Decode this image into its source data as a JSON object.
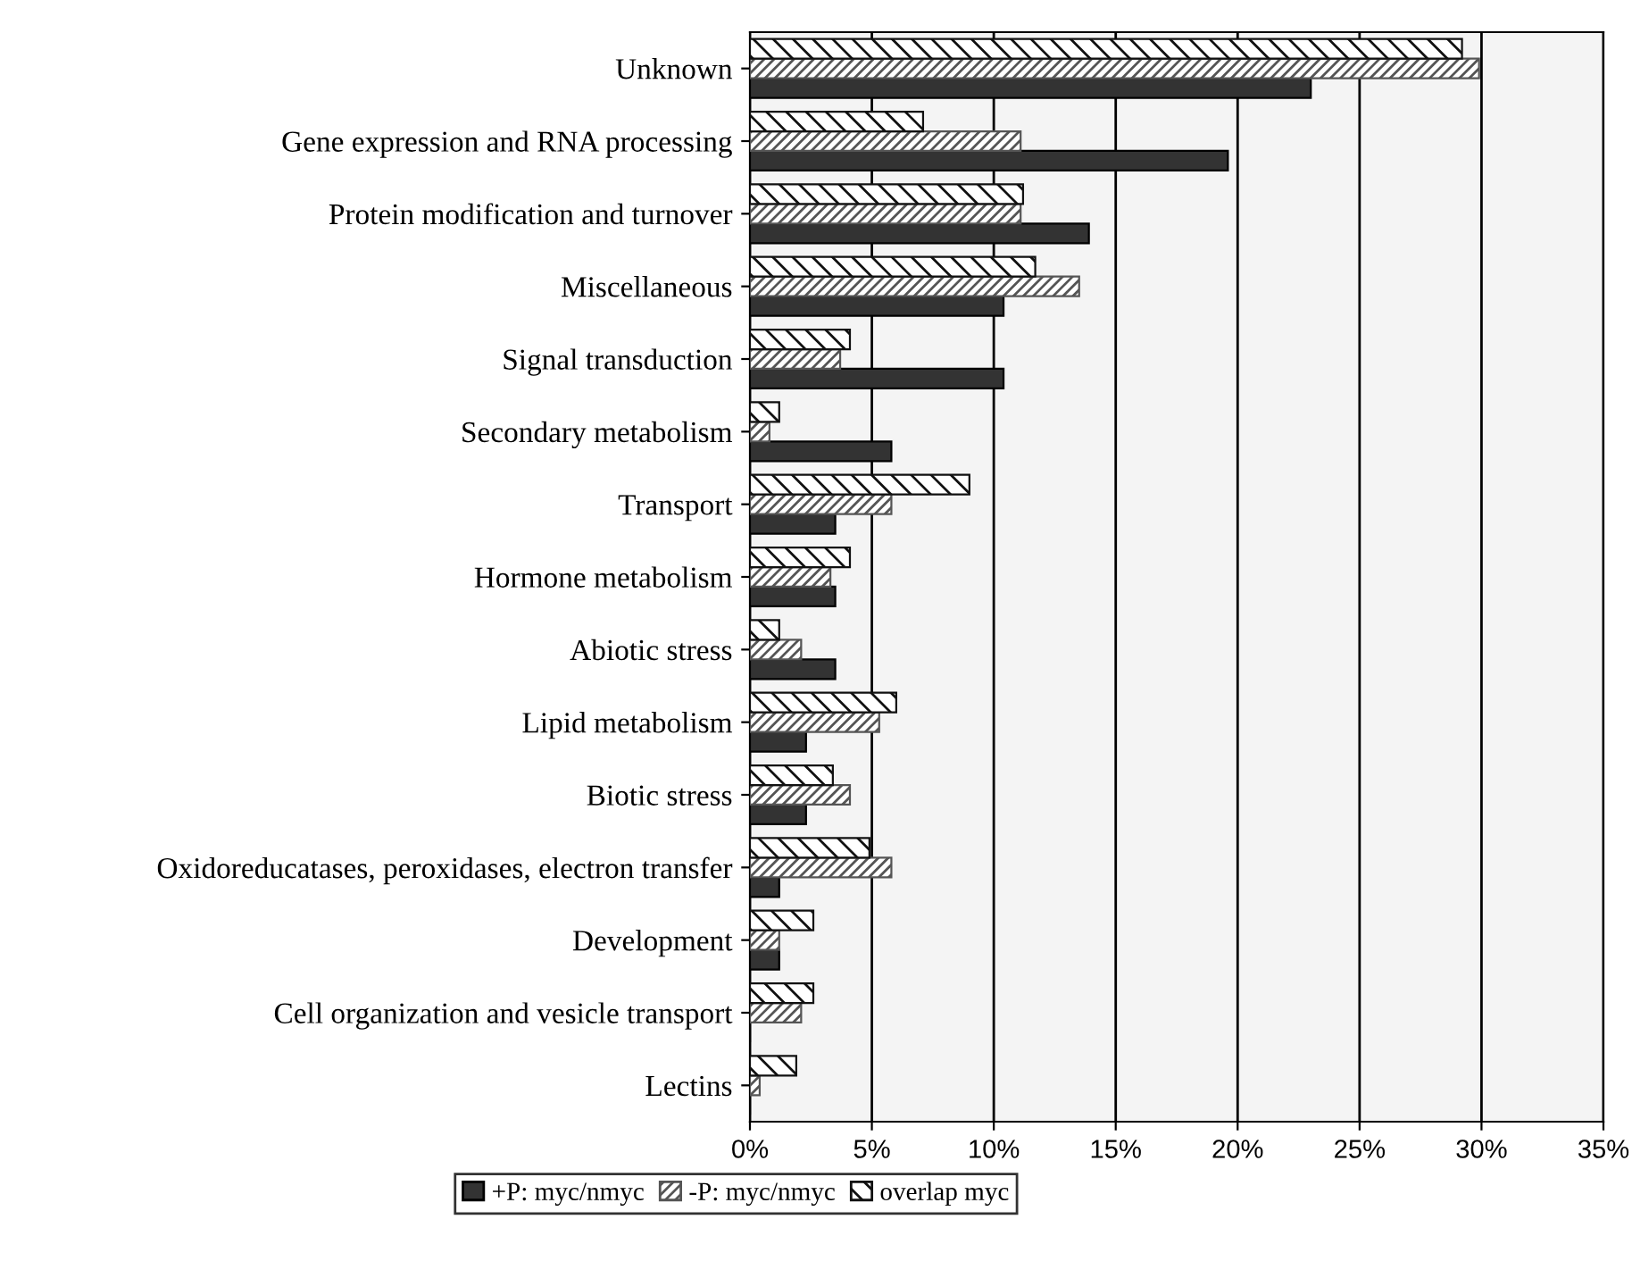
{
  "chart_data": {
    "type": "bar",
    "orientation": "horizontal",
    "categories": [
      "Unknown",
      "Gene expression and RNA processing",
      "Protein modification and turnover",
      "Miscellaneous",
      "Signal transduction",
      "Secondary metabolism",
      "Transport",
      "Hormone metabolism",
      "Abiotic stress",
      "Lipid metabolism",
      "Biotic stress",
      "Oxidoreducatases, peroxidases, electron transfer",
      "Development",
      "Cell organization and vesicle transport",
      "Lectins"
    ],
    "series": [
      {
        "name": "+P: myc/nmyc",
        "color": "#333333",
        "values": [
          23.0,
          19.6,
          13.9,
          10.4,
          10.4,
          5.8,
          3.5,
          3.5,
          3.5,
          2.3,
          2.3,
          1.2,
          1.2,
          0,
          0
        ]
      },
      {
        "name": "-P: myc/nmyc",
        "color": "#555555",
        "values": [
          29.9,
          11.1,
          11.1,
          13.5,
          3.7,
          0.8,
          5.8,
          3.3,
          2.1,
          5.3,
          4.1,
          5.8,
          1.2,
          2.1,
          0.4
        ]
      },
      {
        "name": "overlap myc",
        "color": "#111111",
        "values": [
          29.2,
          7.1,
          11.2,
          11.7,
          4.1,
          1.2,
          9.0,
          4.1,
          1.2,
          6.0,
          3.4,
          4.9,
          2.6,
          2.6,
          1.9
        ]
      }
    ],
    "xlim": [
      0,
      35
    ],
    "xticks": [
      {
        "value": 0,
        "label": "0%"
      },
      {
        "value": 5,
        "label": "5%"
      },
      {
        "value": 10,
        "label": "10%"
      },
      {
        "value": 15,
        "label": "15%"
      },
      {
        "value": 20,
        "label": "20%"
      },
      {
        "value": 25,
        "label": "25%"
      },
      {
        "value": 30,
        "label": "30%"
      },
      {
        "value": 35,
        "label": "35%"
      }
    ],
    "grid": "x",
    "legend": "bottom"
  }
}
